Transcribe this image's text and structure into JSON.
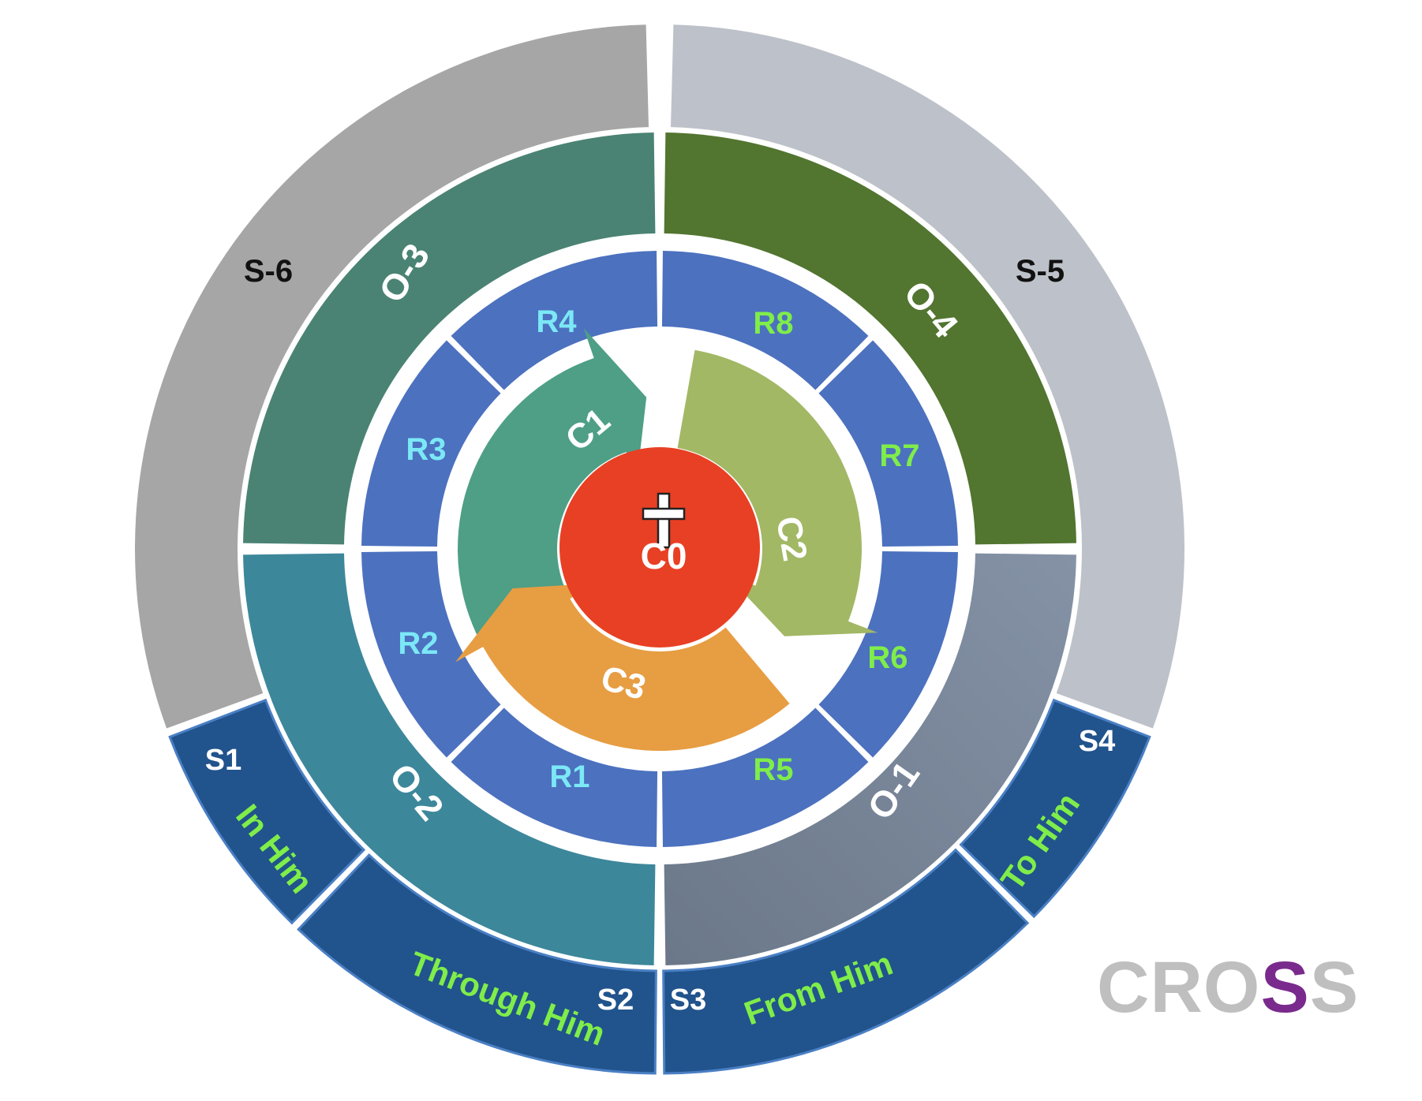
{
  "center": {
    "label": "C0",
    "color": "#e84024",
    "icon": "cross-icon"
  },
  "cycle": [
    {
      "label": "C1",
      "color": "#4e9f86"
    },
    {
      "label": "C2",
      "color": "#a2b865"
    },
    {
      "label": "C3",
      "color": "#e79d42"
    }
  ],
  "ring_r": {
    "color": "#4c71bf",
    "label_cyan": "#7ce8f6",
    "label_green": "#7fed4a",
    "segments": [
      {
        "label": "R1"
      },
      {
        "label": "R2"
      },
      {
        "label": "R3"
      },
      {
        "label": "R4"
      },
      {
        "label": "R5"
      },
      {
        "label": "R6"
      },
      {
        "label": "R7"
      },
      {
        "label": "R8"
      }
    ]
  },
  "ring_o": [
    {
      "label": "O-1",
      "color": "#6e7a8c"
    },
    {
      "label": "O-2",
      "color": "#3d879b"
    },
    {
      "label": "O-3",
      "color": "#4a8373"
    },
    {
      "label": "O-4",
      "color": "#527530"
    }
  ],
  "ring_s": {
    "upper": [
      {
        "label": "S-6",
        "color": "#a6a6a6"
      },
      {
        "label": "S-5",
        "color": "#bdc1c9"
      }
    ],
    "lower_color": "#21538c",
    "lower": [
      {
        "num": "S1",
        "phrase": "In Him"
      },
      {
        "num": "S2",
        "phrase": "Through Him"
      },
      {
        "num": "S3",
        "phrase": "From Him"
      },
      {
        "num": "S4",
        "phrase": "To Him"
      }
    ]
  },
  "brand": {
    "prefix": "CRO",
    "accent": "S",
    "suffix": "S",
    "color": "#bfbfbf",
    "accent_color": "#7a2a8c"
  }
}
